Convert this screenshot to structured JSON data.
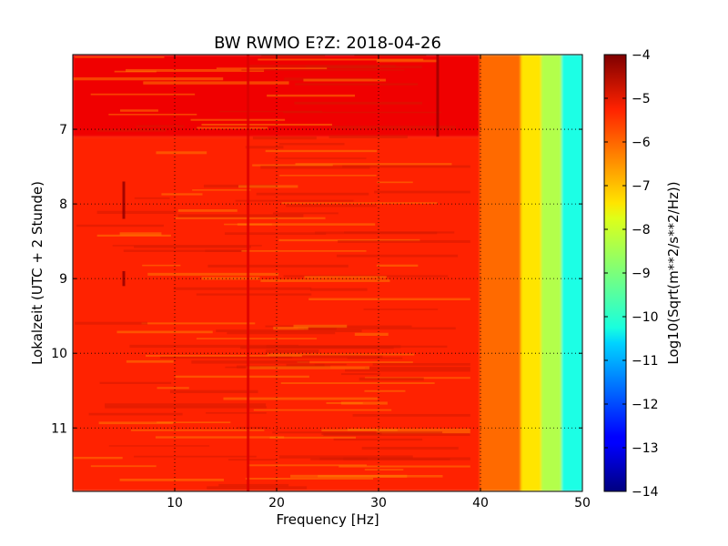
{
  "chart_data": {
    "type": "heatmap",
    "title": "BW RWMO E?Z: 2018-04-26",
    "xlabel": "Frequency [Hz]",
    "ylabel": "Lokalzeit (UTC + 2 Stunde)",
    "xlim": [
      0,
      50
    ],
    "ylim": [
      6.0,
      11.85
    ],
    "x_ticks": [
      10,
      20,
      30,
      40,
      50
    ],
    "y_ticks": [
      7,
      8,
      9,
      10,
      11
    ],
    "y_inverted": true,
    "grid": true,
    "colormap": "jet",
    "colorbar": {
      "label": "Log10(Sqrt(m**2/s**2/Hz))",
      "range": [
        -14,
        -4
      ],
      "ticks": [
        -4,
        -5,
        -6,
        -7,
        -8,
        -9,
        -10,
        -11,
        -12,
        -13,
        -14
      ]
    },
    "bands": [
      {
        "freq_hz": [
          0,
          40
        ],
        "time_h": [
          6.0,
          7.1
        ],
        "level": -5.1
      },
      {
        "freq_hz": [
          0,
          40
        ],
        "time_h": [
          7.1,
          11.85
        ],
        "level": -5.6
      },
      {
        "freq_hz": [
          40,
          44
        ],
        "time_h": [
          6.0,
          11.85
        ],
        "level": -6.3
      },
      {
        "freq_hz": [
          44,
          46
        ],
        "time_h": [
          6.0,
          11.85
        ],
        "level": -7.5
      },
      {
        "freq_hz": [
          46,
          48
        ],
        "time_h": [
          6.0,
          11.85
        ],
        "level": -8.5
      },
      {
        "freq_hz": [
          48,
          50
        ],
        "time_h": [
          6.0,
          11.85
        ],
        "level": -10.0
      }
    ],
    "lines": [
      {
        "freq_hz": 17.2,
        "time_h": [
          6.0,
          11.85
        ],
        "level": -4.9
      },
      {
        "freq_hz": 35.8,
        "time_h": [
          6.0,
          7.1
        ],
        "level": -4.3
      },
      {
        "freq_hz": 5.0,
        "time_h": [
          7.7,
          8.2
        ],
        "level": -4.2
      },
      {
        "freq_hz": 5.0,
        "time_h": [
          8.9,
          9.1
        ],
        "level": -4.2
      }
    ]
  }
}
